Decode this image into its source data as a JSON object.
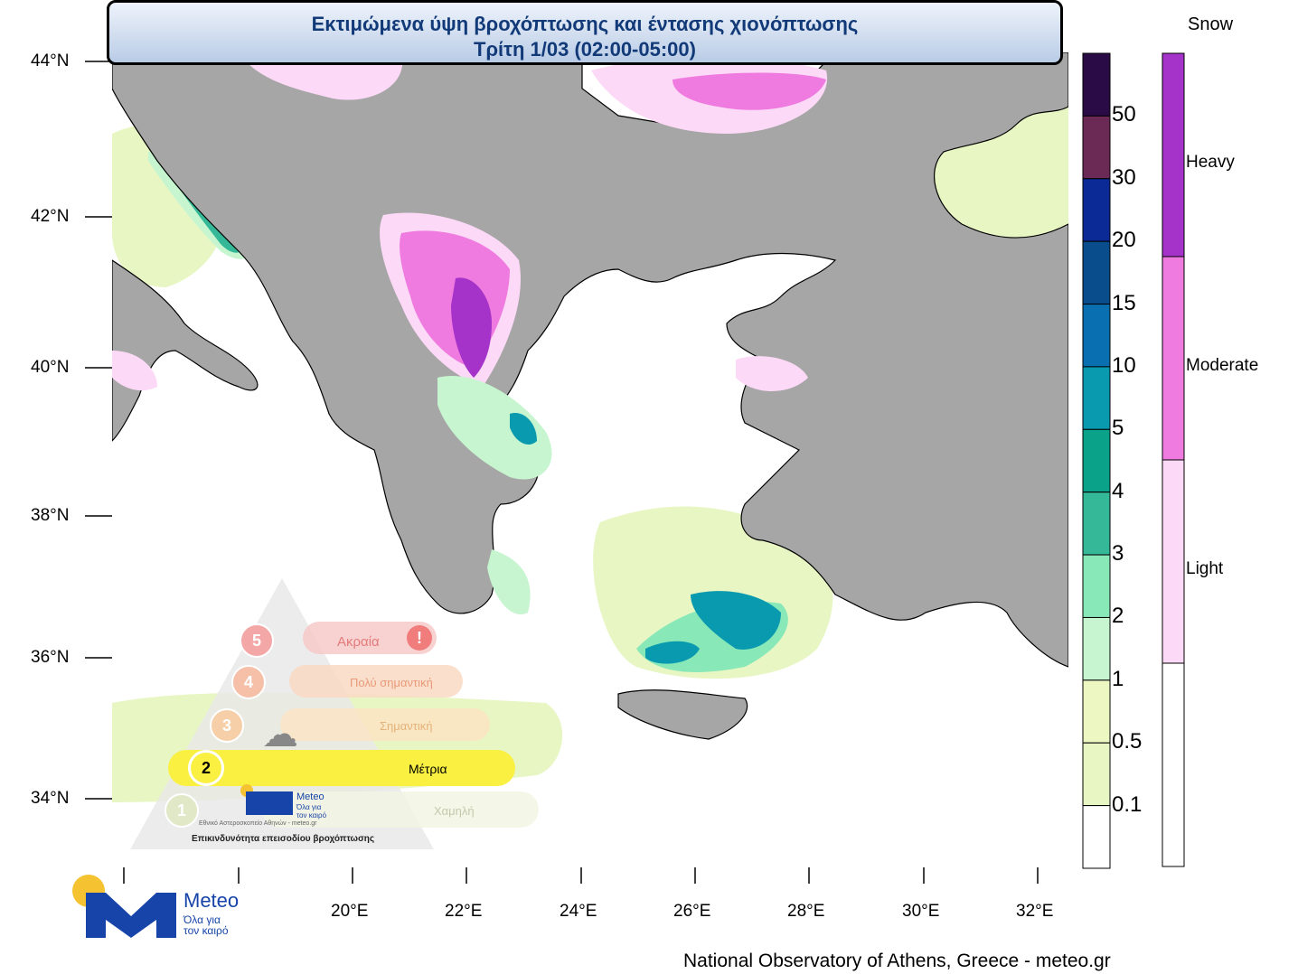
{
  "header": {
    "title_line1": "Εκτιμώμενα ύψη βροχόπτωσης και έντασης χιονόπτωσης",
    "title_line2": "Τρίτη 1/03 (02:00-05:00)"
  },
  "map": {
    "lat_labels": [
      "44°N",
      "42°N",
      "40°N",
      "38°N",
      "36°N",
      "34°N"
    ],
    "lon_labels": [
      "20°E",
      "22°E",
      "24°E",
      "26°E",
      "28°E",
      "30°E",
      "32°E"
    ],
    "colors": {
      "land": "#a6a6a6",
      "sea": "#ffffff",
      "coast": "#000000"
    }
  },
  "rain_legend": {
    "labels": [
      "50",
      "30",
      "20",
      "15",
      "10",
      "5",
      "4",
      "3",
      "2",
      "1",
      "0.5",
      "0.1"
    ],
    "colors": [
      "#2a0b45",
      "#6b2a55",
      "#0b2a96",
      "#0a4d8c",
      "#0a6fb0",
      "#0a9ab0",
      "#0aa38a",
      "#35b898",
      "#88e8b8",
      "#c6f5cf",
      "#ecf7c2",
      "#e8f6c4",
      "#ffffff"
    ]
  },
  "snow_legend": {
    "title": "Snow",
    "levels": [
      "Heavy",
      "Moderate",
      "Light"
    ],
    "colors": [
      "#a533c9",
      "#f07be0",
      "#fcd9f6",
      "#ffffff"
    ]
  },
  "hazard": {
    "levels": [
      {
        "num": "5",
        "label": "Ακραία"
      },
      {
        "num": "4",
        "label": "Πολύ σημαντική"
      },
      {
        "num": "3",
        "label": "Σημαντική"
      },
      {
        "num": "2",
        "label": "Μέτρια"
      },
      {
        "num": "1",
        "label": "Χαμηλή"
      }
    ],
    "active_level": 2,
    "caption": "Επικινδυνότητα επεισοδίου βροχόπτωσης",
    "institute": "Εθνικό Αστεροσκοπείο Αθηνών - meteo.gr",
    "brand": "Meteo",
    "tagline": "Όλα για τον καιρό"
  },
  "logo": {
    "brand": "Meteo",
    "tagline_line1": "Όλα για",
    "tagline_line2": "τον καιρό"
  },
  "footer": {
    "credit": "National Observatory of Athens, Greece - meteo.gr"
  }
}
